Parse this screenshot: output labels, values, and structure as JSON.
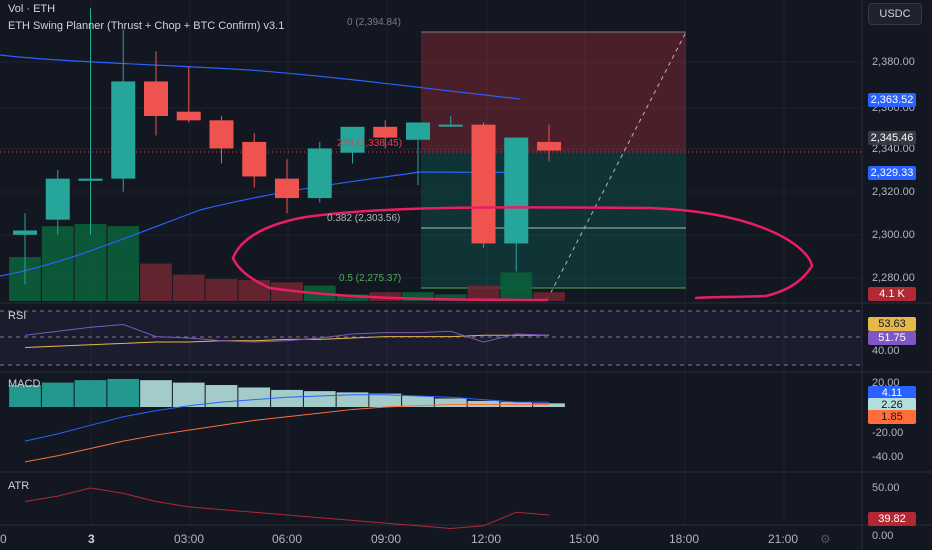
{
  "header": {
    "vol_label": "Vol · ETH",
    "indicator_title": "ETH Swing Planner (Thrust + Chop + BTC Confirm) v3.1"
  },
  "currency_button": "USDC",
  "price_axis": {
    "ticks": [
      "2,380.00",
      "2,360.00",
      "2,340.00",
      "2,320.00",
      "2,300.00",
      "2,280.00"
    ],
    "tags": [
      {
        "text": "2,363.52",
        "color": "#2962ff"
      },
      {
        "text": "2,345.46",
        "color": "#363a45"
      },
      {
        "text": "2,329.33",
        "color": "#2962ff"
      },
      {
        "text": "4.1 K",
        "color": "#b22833"
      }
    ]
  },
  "fib_levels": [
    {
      "text": "0 (2,394.84)",
      "color": "#787b86"
    },
    {
      "text": "236 (2,338.45)",
      "color": "#f23645"
    },
    {
      "text": "0.382 (2,303.56)",
      "color": "#b2b5be"
    },
    {
      "text": "0.5 (2,275.37)",
      "color": "#4caf50"
    }
  ],
  "rsi": {
    "label": "RSI",
    "tags": [
      {
        "text": "53.63",
        "color": "#e6b84a",
        "fg": "#131722"
      },
      {
        "text": "51.75",
        "color": "#7e57c2",
        "fg": "#ffffff"
      }
    ],
    "ticks": [
      "40.00"
    ]
  },
  "macd": {
    "label": "MACD",
    "ticks": [
      "20.00",
      "-20.00",
      "-40.00"
    ],
    "tags": [
      {
        "text": "4.11",
        "color": "#2962ff",
        "fg": "#ffffff"
      },
      {
        "text": "2.26",
        "color": "#b2dfdb",
        "fg": "#131722"
      },
      {
        "text": "1.85",
        "color": "#ff6d3a",
        "fg": "#131722"
      }
    ]
  },
  "atr": {
    "label": "ATR",
    "ticks": [
      "50.00",
      "0.00"
    ],
    "tags": [
      {
        "text": "39.82",
        "color": "#b22833",
        "fg": "#ffffff"
      }
    ]
  },
  "time_axis": [
    "0",
    "3",
    "03:00",
    "06:00",
    "09:00",
    "12:00",
    "15:00",
    "18:00",
    "21:00"
  ],
  "chart_data": {
    "type": "candlestick",
    "candles": [
      {
        "o": 2300,
        "h": 2310,
        "l": 2277,
        "c": 2302
      },
      {
        "o": 2307,
        "h": 2330,
        "l": 2300,
        "c": 2326
      },
      {
        "o": 2325,
        "h": 2405,
        "l": 2300,
        "c": 2326
      },
      {
        "o": 2326,
        "h": 2395,
        "l": 2320,
        "c": 2371
      },
      {
        "o": 2371,
        "h": 2385,
        "l": 2346,
        "c": 2355
      },
      {
        "o": 2357,
        "h": 2378,
        "l": 2352,
        "c": 2353
      },
      {
        "o": 2353,
        "h": 2355,
        "l": 2333,
        "c": 2340
      },
      {
        "o": 2343,
        "h": 2347,
        "l": 2322,
        "c": 2327
      },
      {
        "o": 2326,
        "h": 2335,
        "l": 2310,
        "c": 2317
      },
      {
        "o": 2317,
        "h": 2343,
        "l": 2315,
        "c": 2340
      },
      {
        "o": 2338,
        "h": 2350,
        "l": 2333,
        "c": 2350
      },
      {
        "o": 2350,
        "h": 2353,
        "l": 2340,
        "c": 2345
      },
      {
        "o": 2344,
        "h": 2352,
        "l": 2323,
        "c": 2352
      },
      {
        "o": 2351,
        "h": 2355,
        "l": 2350,
        "c": 2351
      },
      {
        "o": 2351,
        "h": 2352,
        "l": 2294,
        "c": 2296
      },
      {
        "o": 2296,
        "h": 2345,
        "l": 2283,
        "c": 2345
      },
      {
        "o": 2343,
        "h": 2351,
        "l": 2334,
        "c": 2339
      }
    ],
    "volume": [
      2.0,
      3.4,
      3.5,
      3.4,
      1.7,
      1.2,
      1.0,
      0.95,
      0.85,
      0.7,
      0.3,
      0.4,
      0.4,
      0.3,
      0.7,
      1.3,
      0.4
    ],
    "rsi": [
      52,
      55,
      58,
      60,
      51,
      50,
      48,
      47,
      48,
      50,
      53,
      54,
      54,
      55,
      47,
      53,
      52
    ],
    "rsi_ma": [
      43,
      44,
      45,
      46,
      47,
      47,
      48,
      48,
      49,
      49,
      50,
      51,
      51,
      51,
      52,
      52,
      52
    ],
    "macd_hist": [
      18,
      20,
      22,
      23,
      22,
      20,
      18,
      16,
      14,
      13,
      12,
      11,
      9,
      7,
      5,
      4,
      3
    ],
    "macd_line": [
      -28,
      -22,
      -15,
      -8,
      -3,
      1,
      4,
      6,
      8,
      9,
      10,
      10,
      9,
      8,
      6,
      4,
      4
    ],
    "macd_signal": [
      -45,
      -40,
      -34,
      -28,
      -23,
      -19,
      -15,
      -11,
      -8,
      -5,
      -2,
      0,
      1,
      2,
      2,
      2,
      2
    ],
    "atr": [
      45,
      47,
      50,
      48,
      45,
      43,
      42,
      41,
      40,
      39,
      38,
      37,
      36,
      35,
      36,
      41,
      40
    ]
  }
}
